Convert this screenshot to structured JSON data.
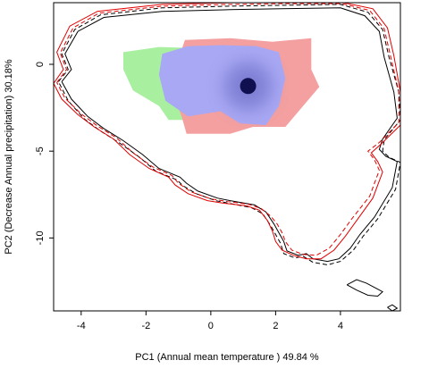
{
  "chart_data": {
    "type": "scatter",
    "title": "",
    "xlabel": "PC1 (Annual mean temperature ) 49.84 %",
    "ylabel": "PC2 (Decrease Annual precipitation) 30.18%",
    "xlim": [
      -4.85,
      5.85
    ],
    "ylim": [
      -14.2,
      3.55
    ],
    "x_ticks": [
      -4,
      -2,
      0,
      2,
      4
    ],
    "x_tick_labels": [
      "-4",
      "-2",
      "0",
      "2",
      "4"
    ],
    "y_ticks": [
      0,
      -5,
      -10
    ],
    "y_tick_labels": [
      "0",
      "-5",
      "-10"
    ],
    "grid": false,
    "legend": "none",
    "colors": {
      "green_region": "#a8f0a0",
      "red_region": "#f4a0a0",
      "blue_region": "#a8a8f4",
      "density_core": "#101050",
      "contour_red": "#e00000",
      "contour_black": "#000000"
    },
    "density_peak": [
      1.15,
      -1.25
    ],
    "regions": [
      {
        "name": "green",
        "polygon": [
          [
            -2.7,
            0.7
          ],
          [
            -1.6,
            1.0
          ],
          [
            0.2,
            0.9
          ],
          [
            0.2,
            -0.9
          ],
          [
            -0.9,
            -1.8
          ],
          [
            -0.7,
            -3.2
          ],
          [
            -1.3,
            -3.2
          ],
          [
            -1.6,
            -2.4
          ],
          [
            -2.4,
            -1.5
          ],
          [
            -2.7,
            -0.3
          ]
        ]
      },
      {
        "name": "red",
        "polygon": [
          [
            -0.8,
            1.4
          ],
          [
            0.6,
            1.5
          ],
          [
            1.9,
            1.3
          ],
          [
            3.1,
            1.5
          ],
          [
            3.1,
            -0.3
          ],
          [
            3.35,
            -1.3
          ],
          [
            2.3,
            -3.6
          ],
          [
            1.3,
            -3.6
          ],
          [
            0.6,
            -4.0
          ],
          [
            -0.75,
            -4.0
          ],
          [
            -0.9,
            -3.0
          ],
          [
            -1.2,
            -1.5
          ],
          [
            -1.0,
            0.3
          ]
        ]
      },
      {
        "name": "blue",
        "polygon": [
          [
            -1.5,
            0.6
          ],
          [
            -0.7,
            1.05
          ],
          [
            0.3,
            1.1
          ],
          [
            1.4,
            1.05
          ],
          [
            2.1,
            0.7
          ],
          [
            2.3,
            -0.8
          ],
          [
            2.1,
            -2.4
          ],
          [
            1.7,
            -3.5
          ],
          [
            0.9,
            -3.4
          ],
          [
            0.3,
            -2.7
          ],
          [
            -0.7,
            -3.0
          ],
          [
            -1.4,
            -2.1
          ],
          [
            -1.6,
            -0.6
          ]
        ]
      }
    ],
    "contours": [
      {
        "color": "black",
        "dash": "solid",
        "points": [
          [
            -4.6,
            -1.0
          ],
          [
            -4.3,
            -0.3
          ],
          [
            -4.5,
            0.6
          ],
          [
            -4.1,
            1.9
          ],
          [
            -3.3,
            2.7
          ],
          [
            -1.5,
            3.05
          ],
          [
            0.6,
            3.15
          ],
          [
            2.2,
            3.2
          ],
          [
            4.0,
            3.25
          ],
          [
            4.75,
            2.8
          ],
          [
            5.2,
            1.9
          ],
          [
            5.35,
            0.4
          ],
          [
            5.65,
            -1.6
          ],
          [
            5.75,
            -3.1
          ],
          [
            5.3,
            -4.3
          ],
          [
            5.2,
            -4.9
          ],
          [
            5.4,
            -5.3
          ],
          [
            5.75,
            -5.6
          ],
          [
            5.6,
            -7.1
          ],
          [
            5.05,
            -8.8
          ],
          [
            4.6,
            -9.8
          ],
          [
            4.3,
            -10.6
          ],
          [
            3.95,
            -11.2
          ],
          [
            3.6,
            -11.35
          ],
          [
            3.15,
            -11.2
          ],
          [
            2.95,
            -10.9
          ],
          [
            2.7,
            -11.0
          ],
          [
            2.35,
            -10.75
          ],
          [
            2.25,
            -10.2
          ],
          [
            2.1,
            -9.7
          ],
          [
            1.95,
            -9.2
          ],
          [
            1.7,
            -8.5
          ],
          [
            1.35,
            -8.1
          ],
          [
            0.6,
            -7.85
          ],
          [
            0.2,
            -7.7
          ],
          [
            -0.4,
            -7.3
          ],
          [
            -0.75,
            -6.85
          ],
          [
            -0.95,
            -6.5
          ],
          [
            -1.6,
            -6.0
          ],
          [
            -2.1,
            -5.2
          ],
          [
            -2.7,
            -4.4
          ],
          [
            -3.3,
            -3.7
          ],
          [
            -3.8,
            -3.0
          ],
          [
            -4.3,
            -2.0
          ],
          [
            -4.6,
            -1.0
          ]
        ]
      },
      {
        "color": "black",
        "dash": "dashed",
        "points": [
          [
            -4.7,
            -1.0
          ],
          [
            -4.4,
            -0.3
          ],
          [
            -4.6,
            0.6
          ],
          [
            -4.2,
            2.0
          ],
          [
            -3.4,
            2.85
          ],
          [
            -1.5,
            3.25
          ],
          [
            0.6,
            3.35
          ],
          [
            2.2,
            3.4
          ],
          [
            4.0,
            3.45
          ],
          [
            4.85,
            3.0
          ],
          [
            5.3,
            2.0
          ],
          [
            5.5,
            0.4
          ],
          [
            5.8,
            -1.6
          ],
          [
            5.85,
            -3.2
          ],
          [
            5.35,
            -4.35
          ],
          [
            5.3,
            -5.0
          ],
          [
            5.5,
            -5.35
          ],
          [
            5.85,
            -5.65
          ],
          [
            5.7,
            -7.2
          ],
          [
            5.15,
            -8.9
          ],
          [
            4.7,
            -9.9
          ],
          [
            4.4,
            -10.7
          ],
          [
            4.0,
            -11.35
          ],
          [
            3.6,
            -11.55
          ],
          [
            3.15,
            -11.4
          ],
          [
            2.85,
            -11.05
          ],
          [
            2.6,
            -11.15
          ],
          [
            2.25,
            -10.9
          ],
          [
            2.15,
            -10.3
          ],
          [
            2.0,
            -9.8
          ],
          [
            1.85,
            -9.3
          ],
          [
            1.6,
            -8.6
          ],
          [
            1.25,
            -8.25
          ],
          [
            0.55,
            -8.0
          ],
          [
            0.15,
            -7.85
          ],
          [
            -0.45,
            -7.45
          ],
          [
            -0.85,
            -7.0
          ],
          [
            -1.05,
            -6.65
          ],
          [
            -1.7,
            -6.15
          ],
          [
            -2.2,
            -5.35
          ],
          [
            -2.8,
            -4.55
          ],
          [
            -3.4,
            -3.85
          ],
          [
            -3.9,
            -3.15
          ],
          [
            -4.4,
            -2.1
          ],
          [
            -4.7,
            -1.0
          ]
        ]
      },
      {
        "color": "red",
        "dash": "solid",
        "points": [
          [
            -4.85,
            -1.1
          ],
          [
            -4.55,
            -0.3
          ],
          [
            -4.75,
            0.7
          ],
          [
            -4.35,
            2.2
          ],
          [
            -3.5,
            3.05
          ],
          [
            -1.5,
            3.45
          ],
          [
            0.6,
            3.55
          ],
          [
            2.2,
            3.55
          ],
          [
            4.1,
            3.55
          ],
          [
            5.0,
            3.2
          ],
          [
            5.45,
            2.1
          ],
          [
            5.65,
            0.5
          ],
          [
            5.85,
            -1.6
          ],
          [
            5.85,
            -3.5
          ],
          [
            5.25,
            -4.6
          ],
          [
            4.95,
            -5.1
          ],
          [
            5.15,
            -5.6
          ],
          [
            5.3,
            -6.2
          ],
          [
            5.0,
            -7.7
          ],
          [
            4.5,
            -9.0
          ],
          [
            4.15,
            -9.9
          ],
          [
            3.8,
            -10.7
          ],
          [
            3.4,
            -11.2
          ],
          [
            2.95,
            -11.2
          ],
          [
            2.55,
            -11.0
          ],
          [
            2.2,
            -10.7
          ],
          [
            2.0,
            -10.2
          ],
          [
            1.9,
            -9.6
          ],
          [
            1.75,
            -9.0
          ],
          [
            1.5,
            -8.4
          ],
          [
            1.1,
            -8.15
          ],
          [
            0.4,
            -8.0
          ],
          [
            -0.1,
            -7.85
          ],
          [
            -0.7,
            -7.45
          ],
          [
            -1.1,
            -6.95
          ],
          [
            -1.3,
            -6.5
          ],
          [
            -1.9,
            -6.0
          ],
          [
            -2.5,
            -5.2
          ],
          [
            -3.0,
            -4.3
          ],
          [
            -3.6,
            -3.6
          ],
          [
            -4.1,
            -2.9
          ],
          [
            -4.6,
            -2.0
          ],
          [
            -4.85,
            -1.1
          ]
        ]
      },
      {
        "color": "red",
        "dash": "dashed",
        "points": [
          [
            -4.75,
            -1.05
          ],
          [
            -4.45,
            -0.3
          ],
          [
            -4.65,
            0.65
          ],
          [
            -4.25,
            2.1
          ],
          [
            -3.45,
            2.95
          ],
          [
            -1.5,
            3.35
          ],
          [
            0.6,
            3.45
          ],
          [
            2.2,
            3.5
          ],
          [
            4.05,
            3.5
          ],
          [
            4.9,
            3.1
          ],
          [
            5.35,
            2.05
          ],
          [
            5.55,
            0.45
          ],
          [
            5.8,
            -1.6
          ],
          [
            5.8,
            -3.35
          ],
          [
            5.2,
            -4.5
          ],
          [
            4.85,
            -5.0
          ],
          [
            5.05,
            -5.5
          ],
          [
            5.2,
            -6.1
          ],
          [
            4.9,
            -7.6
          ],
          [
            4.35,
            -8.9
          ],
          [
            4.0,
            -9.8
          ],
          [
            3.65,
            -10.6
          ],
          [
            3.25,
            -11.0
          ],
          [
            2.85,
            -10.95
          ],
          [
            2.5,
            -10.7
          ],
          [
            2.3,
            -10.2
          ],
          [
            2.2,
            -9.7
          ],
          [
            2.05,
            -9.2
          ],
          [
            1.85,
            -8.75
          ],
          [
            1.55,
            -8.3
          ],
          [
            1.15,
            -8.05
          ],
          [
            0.5,
            -7.9
          ],
          [
            0.0,
            -7.75
          ],
          [
            -0.6,
            -7.35
          ],
          [
            -1.0,
            -6.85
          ],
          [
            -1.2,
            -6.4
          ],
          [
            -1.8,
            -5.9
          ],
          [
            -2.4,
            -5.1
          ],
          [
            -2.9,
            -4.25
          ],
          [
            -3.5,
            -3.55
          ],
          [
            -4.0,
            -2.85
          ],
          [
            -4.5,
            -1.95
          ],
          [
            -4.75,
            -1.05
          ]
        ]
      },
      {
        "color": "black",
        "dash": "solid",
        "points": [
          [
            4.2,
            -12.7
          ],
          [
            4.5,
            -12.4
          ],
          [
            4.8,
            -12.6
          ],
          [
            5.1,
            -12.9
          ],
          [
            5.3,
            -13.1
          ],
          [
            5.15,
            -13.35
          ],
          [
            4.85,
            -13.3
          ],
          [
            4.5,
            -13.0
          ],
          [
            4.2,
            -12.7
          ]
        ]
      },
      {
        "color": "black",
        "dash": "solid",
        "points": [
          [
            5.45,
            -14.0
          ],
          [
            5.6,
            -13.85
          ],
          [
            5.75,
            -14.05
          ],
          [
            5.6,
            -14.2
          ],
          [
            5.45,
            -14.0
          ]
        ]
      }
    ]
  }
}
